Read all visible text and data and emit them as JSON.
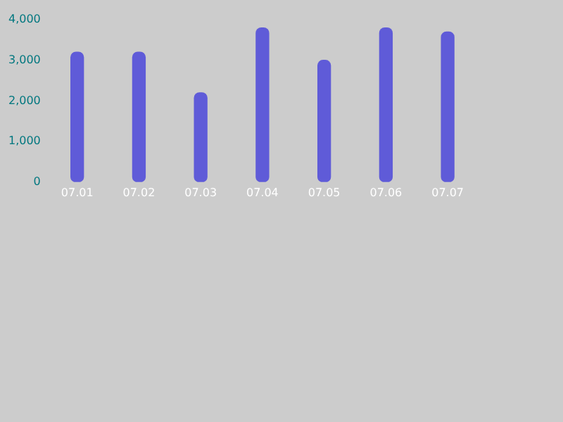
{
  "chart_data": {
    "type": "bar",
    "categories": [
      "07.01",
      "07.02",
      "07.03",
      "07.04",
      "07.05",
      "07.06",
      "07.07"
    ],
    "values": [
      3200,
      3200,
      2200,
      3800,
      3000,
      3800,
      3700
    ],
    "color": "#5f5bd8",
    "ylim": [
      0,
      4000
    ],
    "yticks": [
      0,
      {
        "value": 1000,
        "label": "1,000"
      },
      {
        "value": 2000,
        "label": "2,000"
      },
      {
        "value": 3000,
        "label": "3,000"
      },
      {
        "value": 4000,
        "label": "4,000"
      }
    ],
    "grid": false,
    "legend": false
  }
}
